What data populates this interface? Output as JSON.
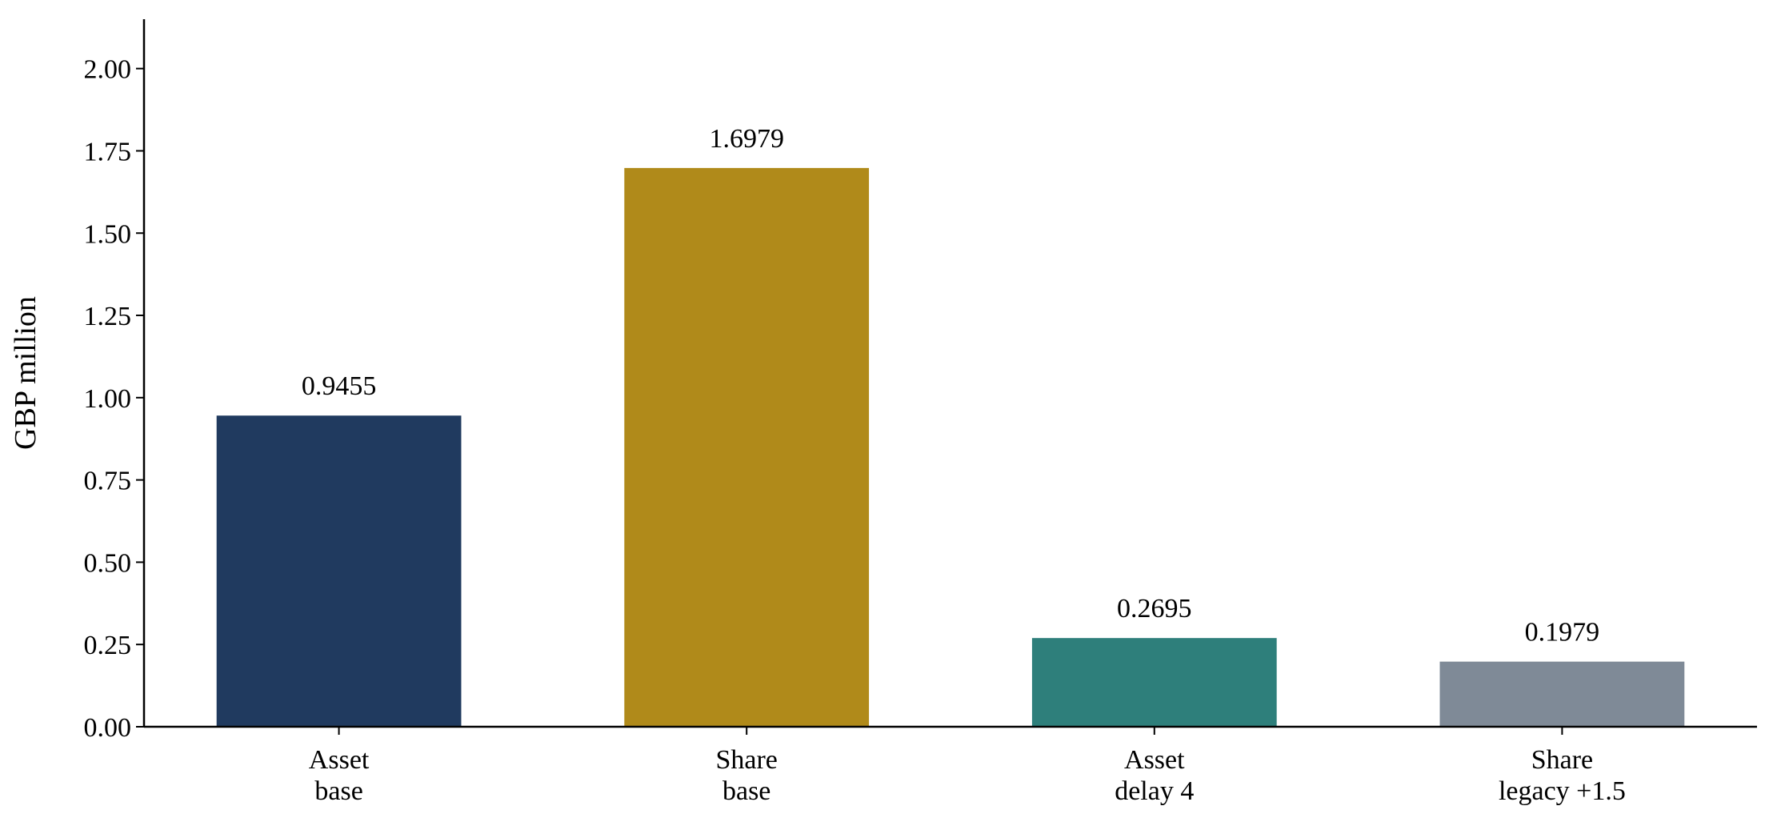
{
  "chart_data": {
    "type": "bar",
    "y_label": "GBP million",
    "categories": [
      "Asset\nbase",
      "Share\nbase",
      "Asset\ndelay 4",
      "Share\nlegacy +1.5"
    ],
    "values": [
      0.9455,
      1.6979,
      0.2695,
      0.1979
    ],
    "colors": [
      "#203a5f",
      "#b08a1a",
      "#2e7f7b",
      "#7f8a97"
    ],
    "ylim": [
      0,
      2.15
    ],
    "yticks": [
      {
        "value": 0,
        "label": "0.00"
      },
      {
        "value": 0.25,
        "label": "0.25"
      },
      {
        "value": 0.5,
        "label": "0.50"
      },
      {
        "value": 0.75,
        "label": "0.75"
      },
      {
        "value": 1,
        "label": "1.00"
      },
      {
        "value": 1.25,
        "label": "1.25"
      },
      {
        "value": 1.5,
        "label": "1.50"
      },
      {
        "value": 1.75,
        "label": "1.75"
      },
      {
        "value": 2,
        "label": "2.00"
      }
    ],
    "grid": false
  }
}
